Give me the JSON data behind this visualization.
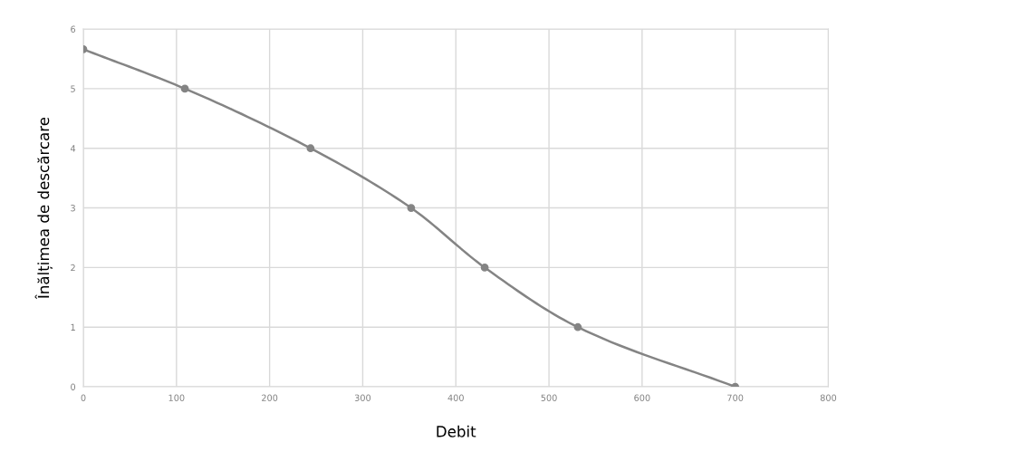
{
  "chart_data": {
    "type": "line",
    "xlabel": "Debit",
    "ylabel": "Înălțimea de descărcare",
    "x": [
      0,
      109,
      244,
      352,
      431,
      531,
      700
    ],
    "series": [
      {
        "color": "#848484",
        "values": [
          5.66,
          5,
          4,
          3,
          2,
          1,
          0
        ]
      }
    ],
    "xlim": [
      0,
      800
    ],
    "xticks": [
      0,
      100,
      200,
      300,
      400,
      500,
      600,
      700,
      800
    ],
    "ylim": [
      0,
      6
    ],
    "yticks": [
      0,
      1,
      2,
      3,
      4,
      5,
      6
    ],
    "grid": true,
    "marker": "circle",
    "line_style": "solid"
  }
}
